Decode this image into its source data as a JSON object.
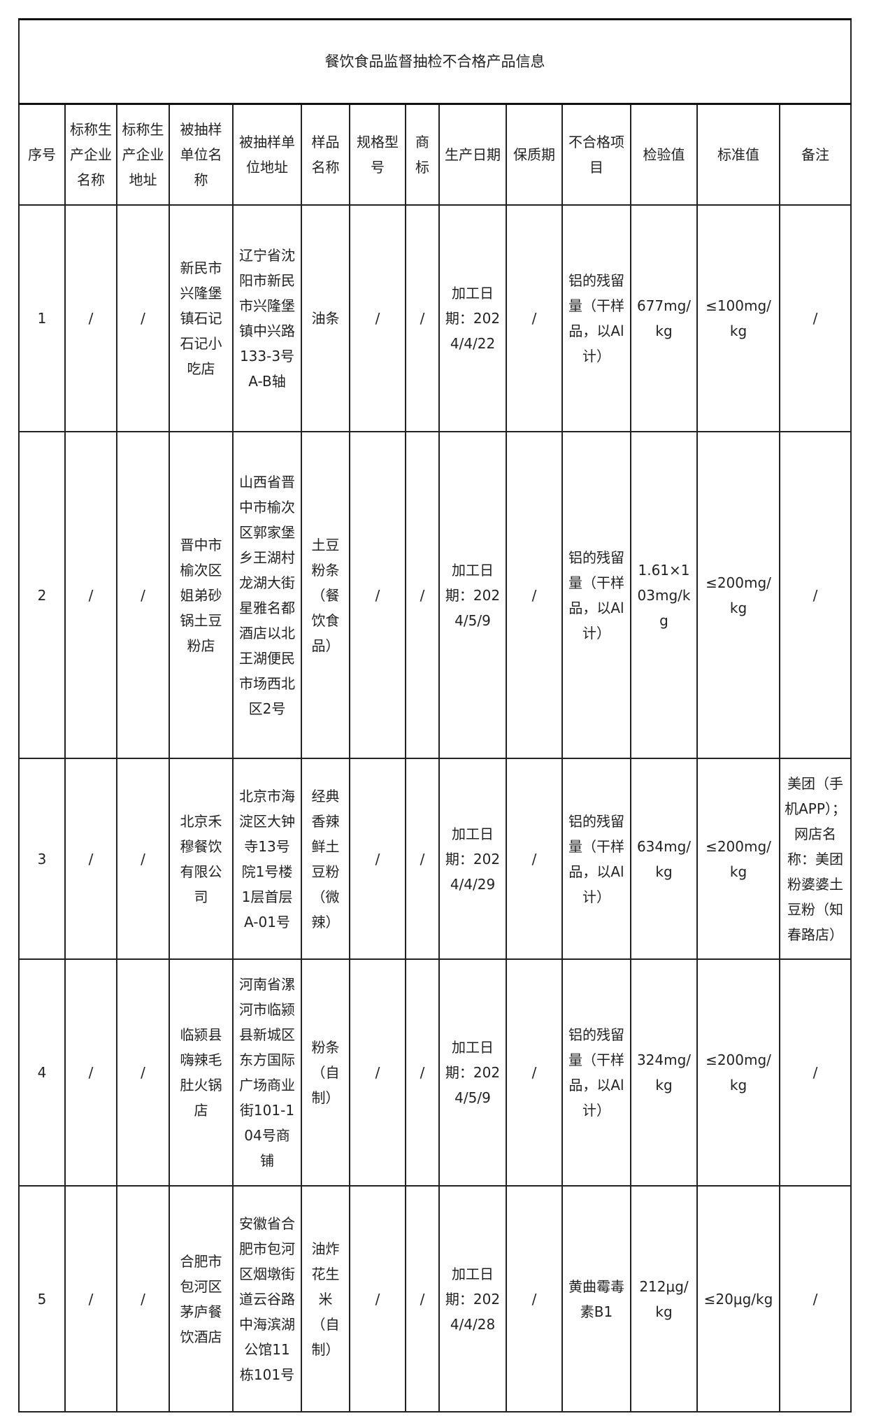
{
  "title": "餐饮食品监督抽检不合格产品信息",
  "headers": [
    "序号",
    "标称生产企业名称",
    "标称生产企业地址",
    "被抽样单位名称",
    "被抽样单位地址",
    "样品名称",
    "规格型号",
    "商标",
    "生产日期",
    "保质期",
    "不合格项目",
    "检验值",
    "标准值",
    "备注"
  ],
  "rows": [
    [
      "1",
      "/",
      "/",
      "新民市兴隆堡镇石记石记小吃店",
      "辽宁省沈阳市新民市兴隆堡镇中兴路133-3号A-B轴",
      "油条",
      "/",
      "/",
      "加工日期：2024/4/22",
      "/",
      "铝的残留量（干样品，以Al计）",
      "677mg/kg",
      "≤100mg/kg",
      "/"
    ],
    [
      "2",
      "/",
      "/",
      "晋中市榆次区姐弟砂锅土豆粉店",
      "山西省晋中市榆次区郭家堡乡王湖村龙湖大街星雅名都酒店以北王湖便民市场西北区2号",
      "土豆粉条（餐饮食品）",
      "/",
      "/",
      "加工日期：2024/5/9",
      "/",
      "铝的残留量（干样品，以Al计）",
      "1.61×103mg/kg",
      "≤200mg/kg",
      "/"
    ],
    [
      "3",
      "/",
      "/",
      "北京禾穆餐饮有限公司",
      "北京市海淀区大钟寺13号院1号楼1层首层A-01号",
      "经典香辣鲜土豆粉（微辣）",
      "/",
      "/",
      "加工日期：2024/4/29",
      "/",
      "铝的残留量（干样品，以Al计）",
      "634mg/kg",
      "≤200mg/kg",
      "美团（手机APP）；网店名称：美团粉婆婆土豆粉（知春路店）"
    ],
    [
      "4",
      "/",
      "/",
      "临颍县嗨辣毛肚火锅店",
      "河南省漯河市临颍县新城区东方国际广场商业街101-104号商铺",
      "粉条（自制）",
      "/",
      "/",
      "加工日期：2024/5/9",
      "/",
      "铝的残留量（干样品，以Al计）",
      "324mg/kg",
      "≤200mg/kg",
      "/"
    ],
    [
      "5",
      "/",
      "/",
      "合肥市包河区茅庐餐饮酒店",
      "安徽省合肥市包河区烟墩街道云谷路中海滨湖公馆11栋101号",
      "油炸花生米（自制）",
      "/",
      "/",
      "加工日期：2024/4/28",
      "/",
      "黄曲霉毒素B1",
      "212μg/kg",
      "≤20μg/kg",
      "/"
    ]
  ]
}
